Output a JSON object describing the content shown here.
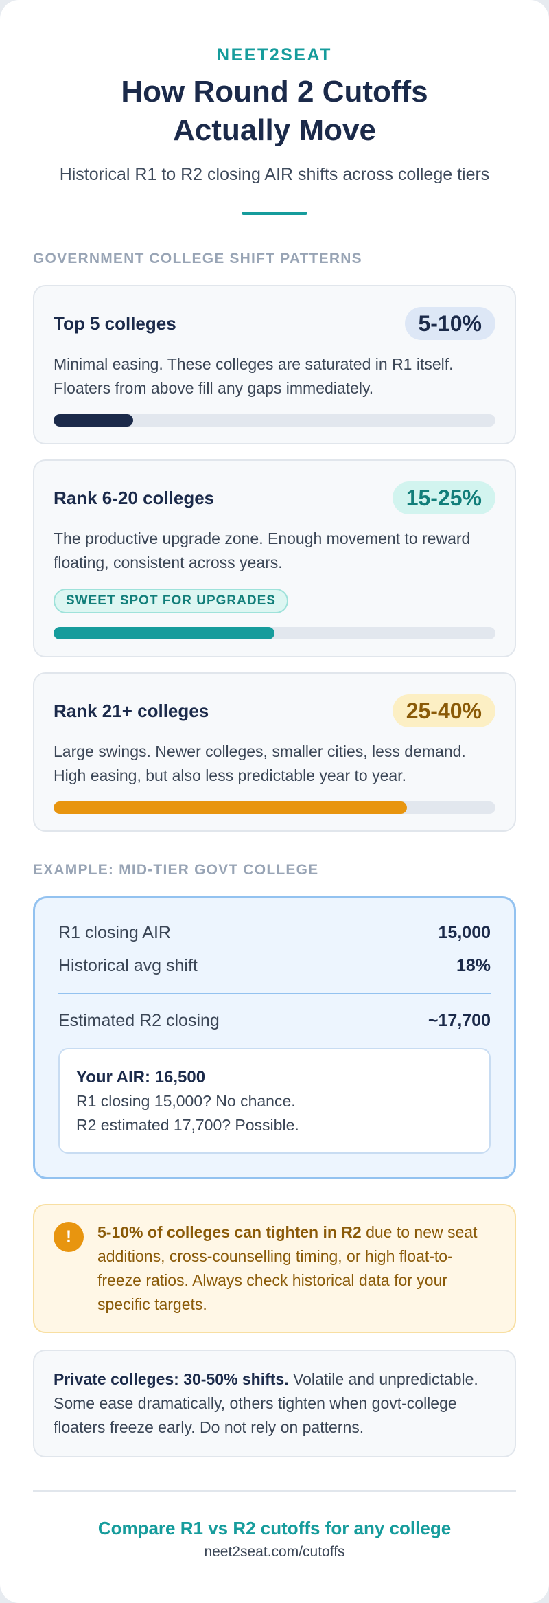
{
  "header": {
    "brand": "NEET2SEAT",
    "title": "How Round 2 Cutoffs Actually Move",
    "subtitle": "Historical R1 to R2 closing AIR shifts across college tiers"
  },
  "govt_section": {
    "label": "GOVERNMENT COLLEGE SHIFT PATTERNS",
    "tiers": [
      {
        "name": "Top 5 colleges",
        "shift": "5-10%",
        "description": "Minimal easing. These colleges are saturated in R1 itself. Floaters from above fill any gaps immediately.",
        "bar_fraction": 0.18,
        "color": "#1b2a4a"
      },
      {
        "name": "Rank 6-20 colleges",
        "shift": "15-25%",
        "description": "The productive upgrade zone. Enough movement to reward floating, consistent across years.",
        "badge": "SWEET SPOT FOR UPGRADES",
        "bar_fraction": 0.5,
        "color": "#169c9c"
      },
      {
        "name": "Rank 21+ colleges",
        "shift": "25-40%",
        "description": "Large swings. Newer colleges, smaller cities, less demand. High easing, but also less predictable year to year.",
        "bar_fraction": 0.8,
        "color": "#e8950f"
      }
    ]
  },
  "example_section": {
    "label": "EXAMPLE: MID-TIER GOVT COLLEGE",
    "r1_label": "R1 closing AIR",
    "r1_value": "15,000",
    "shift_label": "Historical avg shift",
    "shift_value": "18%",
    "est_label": "Estimated R2 closing",
    "est_value": "~17,700",
    "air_title": "Your AIR: 16,500",
    "air_line1": "R1 closing 15,000? No chance.",
    "air_line2": "R2 estimated 17,700? Possible."
  },
  "warning": {
    "icon": "exclamation-icon",
    "bold": "5-10% of colleges can tighten in R2",
    "text": " due to new seat additions, cross-counselling timing, or high float-to-freeze ratios. Always check historical data for your specific targets."
  },
  "private_note": {
    "bold": "Private colleges: 30-50% shifts.",
    "text": " Volatile and unpredictable. Some ease dramatically, others tighten when govt-college floaters freeze early. Do not rely on patterns."
  },
  "footer": {
    "cta": "Compare R1 vs R2 cutoffs for any college",
    "url": "neet2seat.com/cutoffs"
  }
}
